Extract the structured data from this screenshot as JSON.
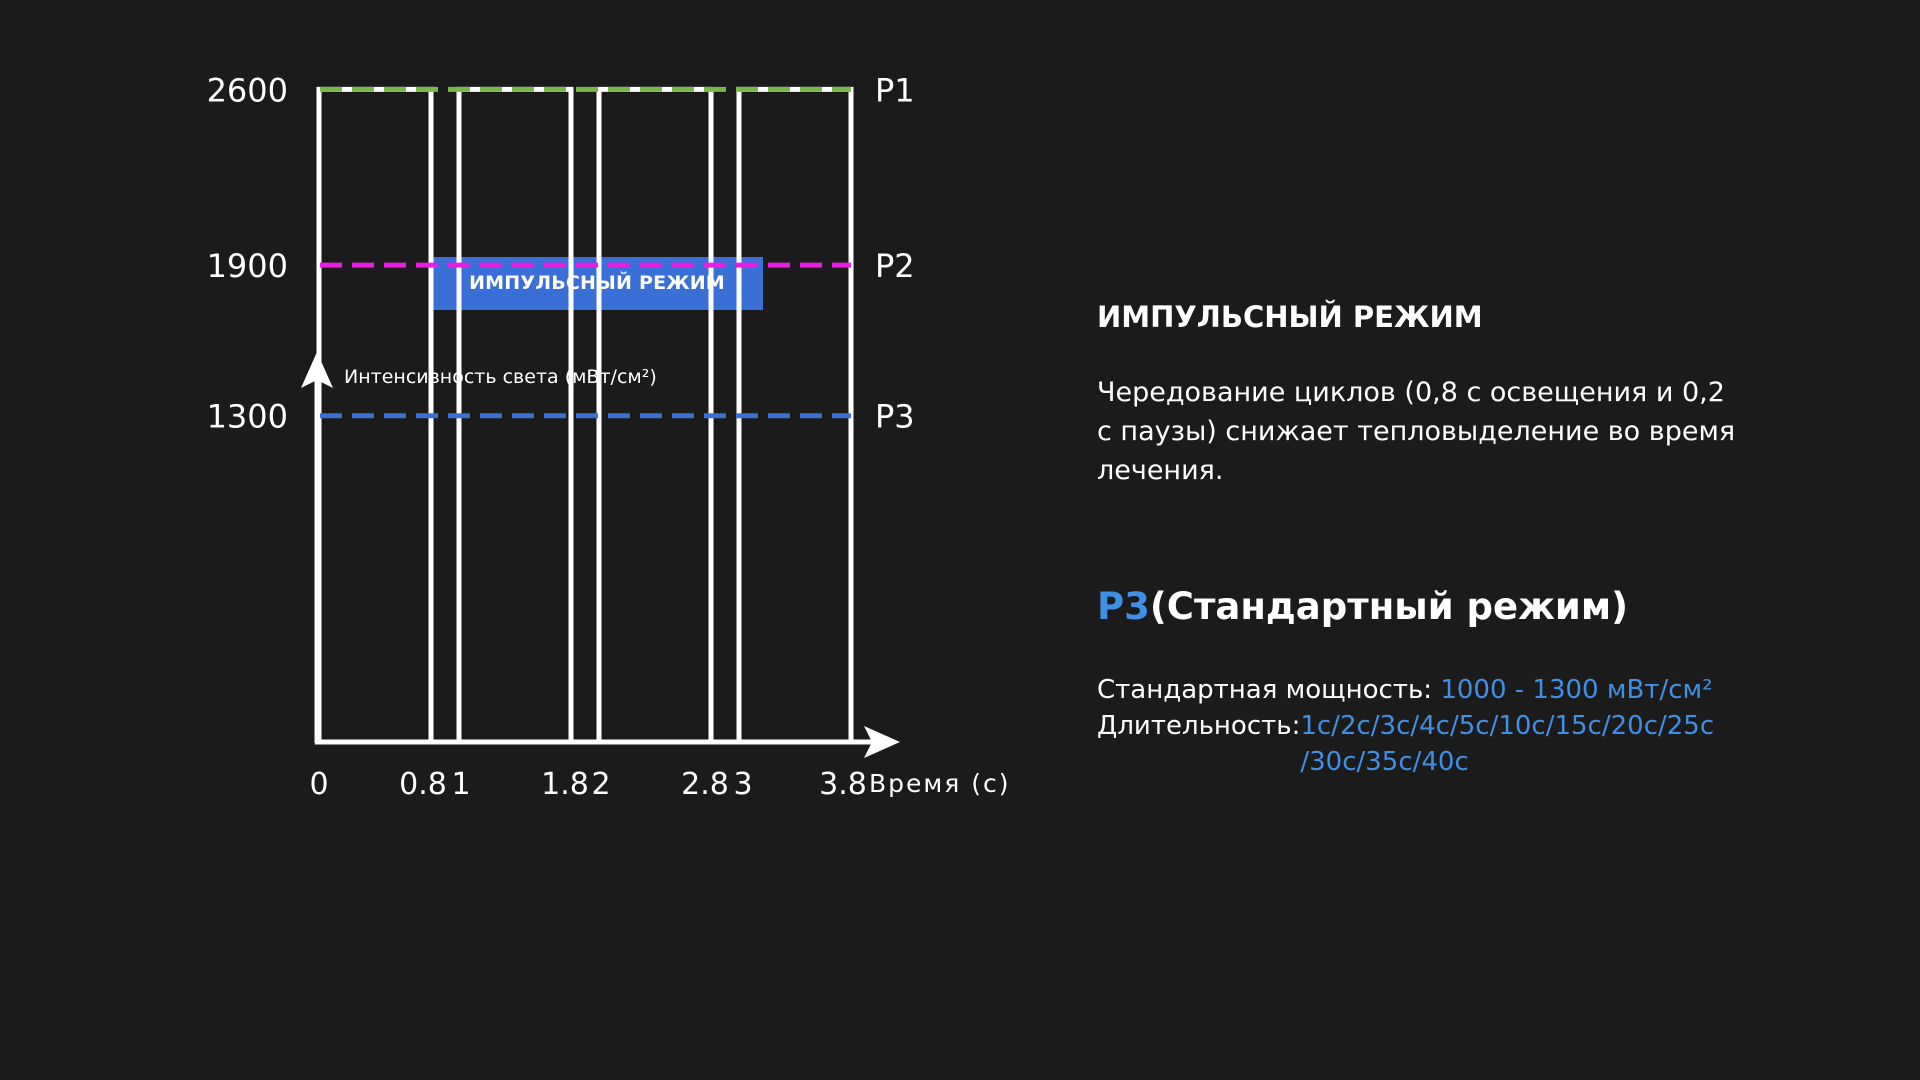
{
  "badge": {
    "label": "ИМПУЛЬСНЫЙ РЕЖИМ"
  },
  "chart_data": {
    "type": "line",
    "title": "",
    "ylabel": "Интенсивность света (мВт/см²)",
    "xlabel": "Время (с)",
    "x_ticks": [
      0,
      0.8,
      1,
      1.8,
      2,
      2.8,
      3,
      3.8
    ],
    "x_tick_labels": [
      "0",
      "0.8",
      "1",
      "1.8",
      "2",
      "2.8",
      "3",
      "3.8"
    ],
    "y_ticks": [
      2600,
      1900,
      1300
    ],
    "y_tick_labels": [
      "2600",
      "1900",
      "1300"
    ],
    "xlim": [
      0,
      4.2
    ],
    "ylim": [
      0,
      3400
    ],
    "pulses": [
      {
        "start": 0,
        "end": 0.8,
        "level": 2600
      },
      {
        "start": 1,
        "end": 1.8,
        "level": 2600
      },
      {
        "start": 2,
        "end": 2.8,
        "level": 2600
      },
      {
        "start": 3,
        "end": 3.8,
        "level": 2600
      }
    ],
    "series": [
      {
        "name": "P1",
        "level": 2600,
        "color": "#7bb84a",
        "style": "dashed"
      },
      {
        "name": "P2",
        "level": 1900,
        "color": "#e81ee0",
        "style": "dashed"
      },
      {
        "name": "P3",
        "level": 1300,
        "color": "#3a6fd8",
        "style": "dashed"
      }
    ],
    "grid": false,
    "legend": "right-inline"
  },
  "info": {
    "title": "ИМПУЛЬСНЫЙ РЕЖИМ",
    "description": "Чередование циклов (0,8 с освещения и 0,2 с паузы) снижает тепловыделение во время лечения.",
    "p3_code": "P3",
    "p3_name": "(Стандартный режим)",
    "power_label": "Стандартная мощность: ",
    "power_value": "1000 - 1300 мВт/см²",
    "duration_label": "Длительность:",
    "duration_value": "1с/2с/3с/4с/5с/10с/15с/20с/25с /30с/35с/40с"
  },
  "colors": {
    "background": "#1b1b1b",
    "accent_blue": "#3f8fe6",
    "badge_blue": "#3a6fd8",
    "text": "#ffffff"
  }
}
